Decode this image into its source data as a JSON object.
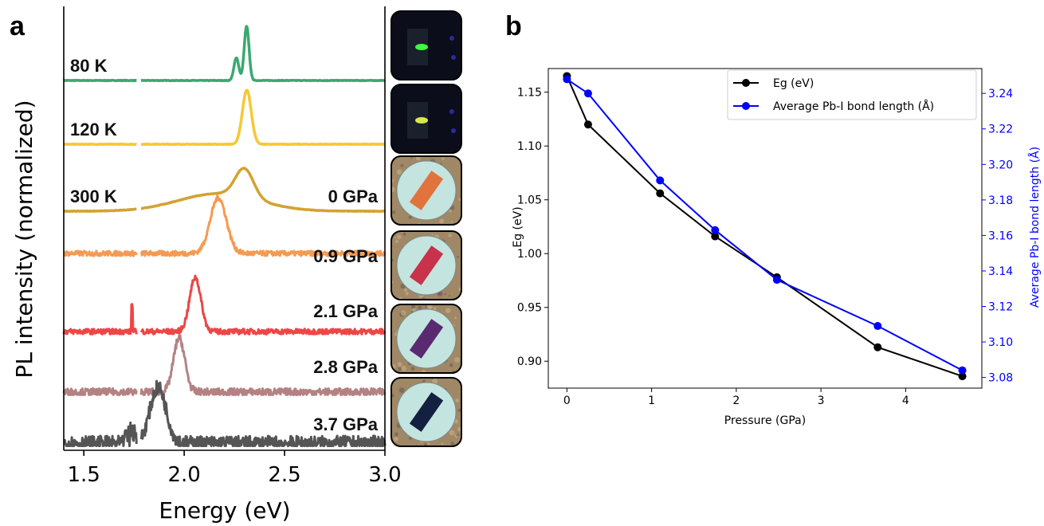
{
  "panel_a": {
    "label": "a",
    "xlabel": "Energy (eV)",
    "ylabel": "PL intensity (normalized)",
    "xlim": [
      1.4,
      3.0
    ],
    "xticks": [
      "1.5",
      "2.0",
      "2.5",
      "3.0"
    ],
    "xtick_values": [
      1.5,
      2.0,
      2.5,
      3.0
    ]
  },
  "panel_b": {
    "label": "b",
    "xlabel": "Pressure (GPa)",
    "ylabel_left": "Eg (eV)",
    "ylabel_right": "Average Pb-I bond length (Å)",
    "legend": [
      "Eg (eV)",
      "Average Pb-I bond length (Å)"
    ]
  },
  "colors": {
    "s80K": "#3aa872",
    "s120K": "#f6c832",
    "s300K": "#d4a232",
    "s0_9": "#f59a52",
    "s2_1": "#ee4646",
    "s2_8": "#b48282",
    "s3_7": "#555555",
    "eg": "#000000",
    "bond": "#0000ff",
    "rightAxis": "#0000ff"
  },
  "images": [
    {
      "name": "photo-80K",
      "kind": "dark",
      "glow": "#3cff3c"
    },
    {
      "name": "photo-120K",
      "kind": "dark",
      "glow": "#d8e84a"
    },
    {
      "name": "photo-0GPa",
      "kind": "cell",
      "crystal": "#e0743c"
    },
    {
      "name": "photo-0.9GPa",
      "kind": "cell",
      "crystal": "#c8324a"
    },
    {
      "name": "photo-2.1GPa",
      "kind": "cell",
      "crystal": "#5a2a70"
    },
    {
      "name": "photo-3.7GPa",
      "kind": "cell",
      "crystal": "#142040"
    }
  ],
  "chart_data": [
    {
      "type": "line",
      "title": "",
      "xlabel": "Energy (eV)",
      "ylabel": "PL intensity (normalized)",
      "xlim": [
        1.4,
        3.0
      ],
      "note": "Normalized PL spectra stacked vertically; gap in each trace near 1.77 eV",
      "series": [
        {
          "name": "80 K",
          "label": "80 K",
          "color": "#3aa872",
          "noise": 0.005,
          "peaks": [
            [
              2.311,
              1.0,
              0.012
            ],
            [
              2.26,
              0.42,
              0.012
            ]
          ],
          "baseline": 0.0
        },
        {
          "name": "120 K",
          "label": "120 K",
          "color": "#f6c832",
          "noise": 0.005,
          "peaks": [
            [
              2.312,
              1.0,
              0.022
            ]
          ],
          "baseline": 0.0
        },
        {
          "name": "300 K / 0 GPa",
          "label": "300 K",
          "label_right": "0 GPa",
          "color": "#d4a232",
          "noise": 0.005,
          "peaks": [
            [
              2.3,
              0.62,
              0.045
            ],
            [
              2.17,
              0.38,
              0.2
            ]
          ],
          "baseline": 0.0
        },
        {
          "name": "0.9 GPa",
          "label_right": "0.9 GPa",
          "color": "#f59a52",
          "noise": 0.045,
          "peaks": [
            [
              2.17,
              1.0,
              0.04
            ]
          ],
          "baseline": 0.0
        },
        {
          "name": "2.1 GPa",
          "label_right": "2.1 GPa",
          "color": "#ee4646",
          "noise": 0.05,
          "peaks": [
            [
              2.055,
              1.0,
              0.028
            ]
          ],
          "baseline": 0.0,
          "spike": 1.74
        },
        {
          "name": "2.8 GPa",
          "label_right": "2.8 GPa",
          "color": "#b48282",
          "noise": 0.07,
          "peaks": [
            [
              1.975,
              1.0,
              0.028
            ]
          ],
          "baseline": 0.0
        },
        {
          "name": "3.7 GPa",
          "label_right": "3.7 GPa",
          "color": "#555555",
          "noise": 0.13,
          "peaks": [
            [
              1.87,
              1.0,
              0.04
            ]
          ],
          "baseline": 0.0
        }
      ]
    },
    {
      "type": "line",
      "title": "",
      "xlabel": "Pressure (GPa)",
      "ylabel": "Eg (eV)",
      "ylabel_right": "Average Pb-I bond length (Å)",
      "xlim": [
        -0.22,
        4.9
      ],
      "ylim_left": [
        0.875,
        1.172
      ],
      "ylim_right": [
        3.074,
        3.254
      ],
      "xticks": [
        0,
        1,
        2,
        3,
        4
      ],
      "yticks_left": [
        0.9,
        0.95,
        1.0,
        1.05,
        1.1,
        1.15
      ],
      "yticks_right": [
        3.08,
        3.1,
        3.12,
        3.14,
        3.16,
        3.18,
        3.2,
        3.22,
        3.24
      ],
      "legend_position": "top-right",
      "series": [
        {
          "name": "Eg (eV)",
          "axis": "left",
          "color": "#000000",
          "x": [
            0,
            0.25,
            1.1,
            1.75,
            2.48,
            3.67,
            4.67
          ],
          "y": [
            1.165,
            1.12,
            1.056,
            1.016,
            0.978,
            0.913,
            0.886
          ]
        },
        {
          "name": "Average Pb-I bond length (Å)",
          "axis": "right",
          "color": "#0000ff",
          "x": [
            0,
            0.25,
            1.1,
            1.75,
            2.48,
            3.67,
            4.67
          ],
          "y": [
            3.248,
            3.24,
            3.191,
            3.163,
            3.135,
            3.109,
            3.084
          ]
        }
      ]
    }
  ]
}
